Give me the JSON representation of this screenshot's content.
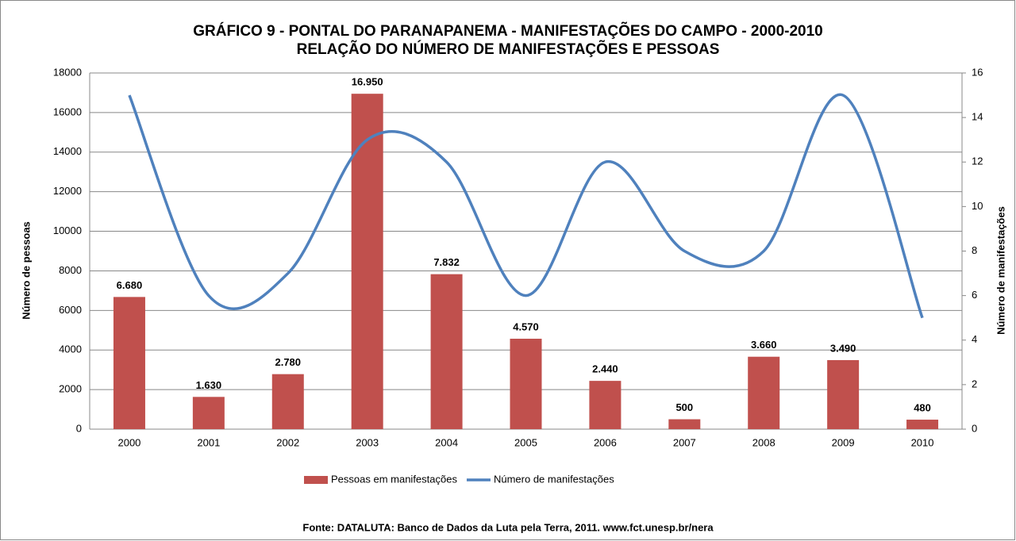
{
  "chart_data": {
    "type": "bar_line",
    "title": "GRÁFICO 9 - PONTAL DO PARANAPANEMA - MANIFESTAÇÕES DO CAMPO - 2000-2010",
    "subtitle": "RELAÇÃO DO NÚMERO DE MANIFESTAÇÕES E PESSOAS",
    "ylabel": "Número de pessoas",
    "y2label": "Número de manifestações",
    "categories": [
      "2000",
      "2001",
      "2002",
      "2003",
      "2004",
      "2005",
      "2006",
      "2007",
      "2008",
      "2009",
      "2010"
    ],
    "series": [
      {
        "name": "Pessoas em manifestações",
        "color": "#c0504d",
        "type": "bar",
        "values": [
          6680,
          1630,
          2780,
          16950,
          7832,
          4570,
          2440,
          500,
          3660,
          3490,
          480
        ],
        "value_labels": [
          "6.680",
          "1.630",
          "2.780",
          "16.950",
          "7.832",
          "4.570",
          "2.440",
          "500",
          "3.660",
          "3.490",
          "480"
        ]
      },
      {
        "name": "Número de manifestações",
        "color": "#4f81bd",
        "type": "line",
        "axis": "y2",
        "smooth": true,
        "values": [
          15,
          6,
          7,
          13,
          12,
          6,
          12,
          8,
          8,
          15,
          5
        ]
      }
    ],
    "ylim": [
      0,
      18000
    ],
    "yticks": [
      0,
      2000,
      4000,
      6000,
      8000,
      10000,
      12000,
      14000,
      16000,
      18000
    ],
    "y2lim": [
      0,
      16
    ],
    "y2ticks": [
      0,
      2,
      4,
      6,
      8,
      10,
      12,
      14,
      16
    ],
    "grid": true,
    "source": "Fonte: DATALUTA:  Banco de Dados da Luta pela Terra, 2011. www.fct.unesp.br/nera"
  }
}
